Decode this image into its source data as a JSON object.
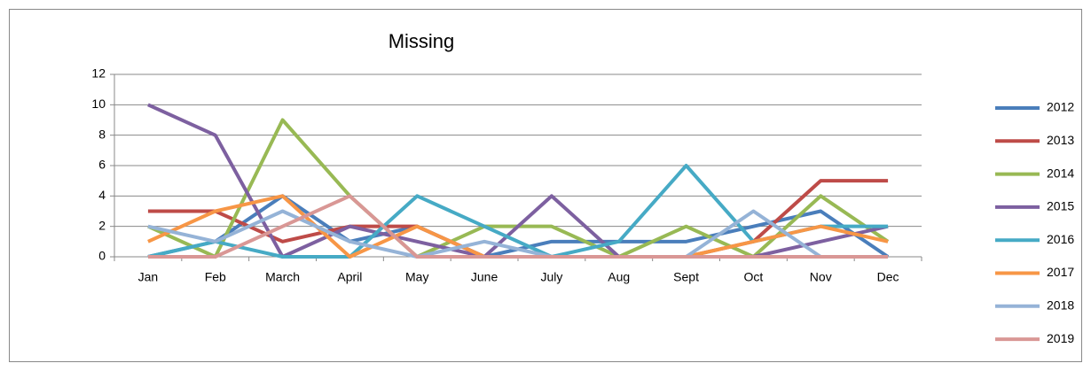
{
  "chart_data": {
    "type": "line",
    "title": "Missing",
    "categories": [
      "Jan",
      "Feb",
      "March",
      "April",
      "May",
      "June",
      "July",
      "Aug",
      "Sept",
      "Oct",
      "Nov",
      "Dec"
    ],
    "series": [
      {
        "name": "2012",
        "color": "#4a7ebb",
        "values": [
          0,
          1,
          4,
          1,
          2,
          0,
          1,
          1,
          1,
          2,
          3,
          0
        ]
      },
      {
        "name": "2013",
        "color": "#be4b48",
        "values": [
          3,
          3,
          1,
          2,
          2,
          0,
          0,
          0,
          0,
          1,
          5,
          5
        ]
      },
      {
        "name": "2014",
        "color": "#98b954",
        "values": [
          2,
          0,
          9,
          4,
          0,
          2,
          2,
          0,
          2,
          0,
          4,
          1
        ]
      },
      {
        "name": "2015",
        "color": "#7d60a0",
        "values": [
          10,
          8,
          0,
          2,
          1,
          0,
          4,
          0,
          0,
          0,
          1,
          2
        ]
      },
      {
        "name": "2016",
        "color": "#46aac5",
        "values": [
          0,
          1,
          0,
          0,
          4,
          2,
          0,
          1,
          6,
          1,
          2,
          2
        ]
      },
      {
        "name": "2017",
        "color": "#f79646",
        "values": [
          1,
          3,
          4,
          0,
          2,
          0,
          0,
          0,
          0,
          1,
          2,
          1
        ]
      },
      {
        "name": "2018",
        "color": "#95b3d7",
        "values": [
          2,
          1,
          3,
          1,
          0,
          1,
          0,
          0,
          0,
          3,
          0,
          0
        ]
      },
      {
        "name": "2019",
        "color": "#d99795",
        "values": [
          0,
          0,
          2,
          4,
          0,
          0,
          0,
          0,
          0,
          0,
          0,
          0
        ]
      }
    ],
    "ylim": [
      0,
      12
    ],
    "yticks": [
      0,
      2,
      4,
      6,
      8,
      10,
      12
    ],
    "grid": true,
    "legend": "right"
  }
}
